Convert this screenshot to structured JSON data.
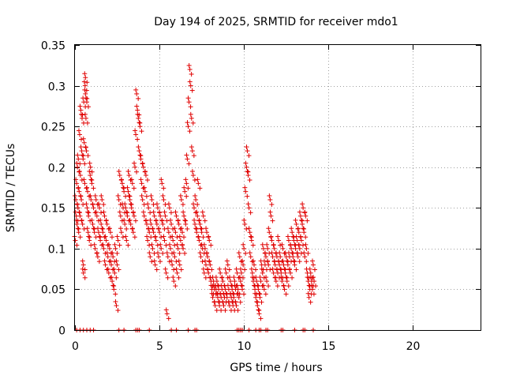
{
  "chart_data": {
    "type": "scatter",
    "title": "Day 194 of 2025, SRMTID for receiver mdo1",
    "xlabel": "GPS time / hours",
    "ylabel": "SRMTID / TECUs",
    "xlim": [
      0,
      24
    ],
    "ylim": [
      0,
      0.35
    ],
    "xticks": [
      0,
      5,
      10,
      15,
      20
    ],
    "xtick_labels": [
      "0",
      "5",
      "10",
      "15",
      "20"
    ],
    "yticks": [
      0,
      0.05,
      0.1,
      0.15,
      0.2,
      0.25,
      0.3,
      0.35
    ],
    "ytick_labels": [
      "0",
      "0.05",
      "0.1",
      "0.15",
      "0.2",
      "0.25",
      "0.3",
      "0.35"
    ],
    "grid": true,
    "marker": "+",
    "color": "#e00000",
    "series": [
      {
        "name": "SRMTID",
        "points": [
          [
            0.02,
            0.11
          ],
          [
            0.05,
            0.16
          ],
          [
            0.08,
            0.14
          ],
          [
            0.1,
            0.18
          ],
          [
            0.12,
            0.13
          ],
          [
            0.15,
            0.2
          ],
          [
            0.18,
            0.15
          ],
          [
            0.2,
            0.21
          ],
          [
            0.22,
            0.12
          ],
          [
            0.25,
            0.17
          ],
          [
            0.28,
            0.24
          ],
          [
            0.3,
            0.14
          ],
          [
            0.32,
            0.19
          ],
          [
            0.35,
            0.27
          ],
          [
            0.38,
            0.16
          ],
          [
            0.4,
            0.22
          ],
          [
            0.42,
            0.26
          ],
          [
            0.45,
            0.13
          ],
          [
            0.48,
            0.21
          ],
          [
            0.5,
            0.08
          ],
          [
            0.5,
            0.07
          ],
          [
            0.52,
            0.28
          ],
          [
            0.55,
            0.23
          ],
          [
            0.58,
            0.18
          ],
          [
            0.6,
            0.3
          ],
          [
            0.62,
            0.29
          ],
          [
            0.62,
            0.31
          ],
          [
            0.65,
            0.26
          ],
          [
            0.68,
            0.22
          ],
          [
            0.7,
            0.28
          ],
          [
            0.72,
            0.15
          ],
          [
            0.75,
            0.17
          ],
          [
            0.78,
            0.12
          ],
          [
            0.8,
            0.14
          ],
          [
            0.85,
            0.11
          ],
          [
            0.9,
            0.19
          ],
          [
            0.92,
            0.2
          ],
          [
            0.95,
            0.16
          ],
          [
            1.0,
            0.18
          ],
          [
            1.05,
            0.13
          ],
          [
            1.1,
            0.15
          ],
          [
            1.15,
            0.12
          ],
          [
            1.2,
            0.1
          ],
          [
            1.25,
            0.16
          ],
          [
            1.3,
            0.14
          ],
          [
            1.35,
            0.09
          ],
          [
            1.4,
            0.12
          ],
          [
            1.45,
            0.15
          ],
          [
            1.5,
            0.11
          ],
          [
            1.55,
            0.13
          ],
          [
            1.6,
            0.16
          ],
          [
            1.65,
            0.12
          ],
          [
            1.7,
            0.1
          ],
          [
            1.75,
            0.14
          ],
          [
            1.8,
            0.08
          ],
          [
            1.85,
            0.11
          ],
          [
            1.9,
            0.13
          ],
          [
            1.95,
            0.09
          ],
          [
            2.0,
            0.07
          ],
          [
            2.05,
            0.1
          ],
          [
            2.1,
            0.12
          ],
          [
            2.15,
            0.08
          ],
          [
            2.2,
            0.06
          ],
          [
            2.25,
            0.09
          ],
          [
            2.3,
            0.05
          ],
          [
            2.35,
            0.07
          ],
          [
            2.4,
            0.1
          ],
          [
            2.45,
            0.03
          ],
          [
            2.5,
            0.08
          ],
          [
            2.55,
            0.11
          ],
          [
            2.6,
            0.16
          ],
          [
            2.65,
            0.19
          ],
          [
            2.7,
            0.14
          ],
          [
            2.75,
            0.12
          ],
          [
            2.8,
            0.18
          ],
          [
            2.85,
            0.15
          ],
          [
            2.9,
            0.17
          ],
          [
            2.95,
            0.13
          ],
          [
            3.0,
            0.15
          ],
          [
            3.05,
            0.11
          ],
          [
            3.1,
            0.14
          ],
          [
            3.15,
            0.17
          ],
          [
            3.2,
            0.19
          ],
          [
            3.25,
            0.16
          ],
          [
            3.3,
            0.13
          ],
          [
            3.35,
            0.15
          ],
          [
            3.4,
            0.18
          ],
          [
            3.45,
            0.12
          ],
          [
            3.5,
            0.14
          ],
          [
            3.55,
            0.2
          ],
          [
            3.6,
            0.24
          ],
          [
            3.65,
            0.29
          ],
          [
            3.7,
            0.27
          ],
          [
            3.75,
            0.26
          ],
          [
            3.8,
            0.22
          ],
          [
            3.85,
            0.25
          ],
          [
            3.9,
            0.21
          ],
          [
            3.95,
            0.18
          ],
          [
            4.0,
            0.16
          ],
          [
            4.05,
            0.2
          ],
          [
            4.1,
            0.14
          ],
          [
            4.15,
            0.17
          ],
          [
            4.2,
            0.19
          ],
          [
            4.25,
            0.13
          ],
          [
            4.3,
            0.11
          ],
          [
            4.35,
            0.15
          ],
          [
            4.4,
            0.12
          ],
          [
            4.45,
            0.09
          ],
          [
            4.5,
            0.13
          ],
          [
            4.55,
            0.16
          ],
          [
            4.6,
            0.1
          ],
          [
            4.65,
            0.12
          ],
          [
            4.7,
            0.14
          ],
          [
            4.75,
            0.08
          ],
          [
            4.8,
            0.11
          ],
          [
            4.85,
            0.13
          ],
          [
            4.9,
            0.15
          ],
          [
            4.95,
            0.09
          ],
          [
            5.0,
            0.12
          ],
          [
            5.05,
            0.14
          ],
          [
            5.1,
            0.1
          ],
          [
            5.15,
            0.18
          ],
          [
            5.2,
            0.13
          ],
          [
            5.25,
            0.16
          ],
          [
            5.3,
            0.11
          ],
          [
            5.35,
            0.14
          ],
          [
            5.4,
            0.07
          ],
          [
            5.45,
            0.02
          ],
          [
            5.5,
            0.09
          ],
          [
            5.55,
            0.12
          ],
          [
            5.6,
            0.15
          ],
          [
            5.65,
            0.1
          ],
          [
            5.7,
            0.13
          ],
          [
            5.75,
            0.08
          ],
          [
            5.8,
            0.11
          ],
          [
            5.85,
            0.06
          ],
          [
            5.9,
            0.09
          ],
          [
            5.95,
            0.12
          ],
          [
            6.0,
            0.14
          ],
          [
            6.05,
            0.07
          ],
          [
            6.1,
            0.1
          ],
          [
            6.15,
            0.13
          ],
          [
            6.2,
            0.08
          ],
          [
            6.25,
            0.11
          ],
          [
            6.3,
            0.16
          ],
          [
            6.35,
            0.12
          ],
          [
            6.4,
            0.1
          ],
          [
            6.45,
            0.14
          ],
          [
            6.5,
            0.17
          ],
          [
            6.55,
            0.13
          ],
          [
            6.6,
            0.18
          ],
          [
            6.65,
            0.21
          ],
          [
            6.7,
            0.25
          ],
          [
            6.75,
            0.28
          ],
          [
            6.8,
            0.32
          ],
          [
            6.85,
            0.3
          ],
          [
            6.9,
            0.26
          ],
          [
            6.95,
            0.22
          ],
          [
            7.0,
            0.19
          ],
          [
            7.05,
            0.15
          ],
          [
            7.1,
            0.13
          ],
          [
            7.15,
            0.16
          ],
          [
            7.2,
            0.12
          ],
          [
            7.25,
            0.14
          ],
          [
            7.3,
            0.18
          ],
          [
            7.35,
            0.11
          ],
          [
            7.4,
            0.13
          ],
          [
            7.45,
            0.09
          ],
          [
            7.5,
            0.12
          ],
          [
            7.55,
            0.1
          ],
          [
            7.6,
            0.14
          ],
          [
            7.65,
            0.07
          ],
          [
            7.7,
            0.1
          ],
          [
            7.75,
            0.08
          ],
          [
            7.8,
            0.12
          ],
          [
            7.85,
            0.09
          ],
          [
            7.9,
            0.07
          ],
          [
            7.95,
            0.11
          ],
          [
            8.0,
            0.08
          ],
          [
            8.05,
            0.06
          ],
          [
            8.1,
            0.05
          ],
          [
            8.15,
            0.04
          ],
          [
            8.2,
            0.06
          ],
          [
            8.25,
            0.05
          ],
          [
            8.3,
            0.03
          ],
          [
            8.35,
            0.05
          ],
          [
            8.4,
            0.06
          ],
          [
            8.45,
            0.04
          ],
          [
            8.5,
            0.05
          ],
          [
            8.55,
            0.03
          ],
          [
            8.6,
            0.07
          ],
          [
            8.65,
            0.04
          ],
          [
            8.7,
            0.05
          ],
          [
            8.75,
            0.06
          ],
          [
            8.8,
            0.03
          ],
          [
            8.85,
            0.04
          ],
          [
            8.9,
            0.05
          ],
          [
            8.95,
            0.07
          ],
          [
            9.0,
            0.04
          ],
          [
            9.05,
            0.08
          ],
          [
            9.1,
            0.05
          ],
          [
            9.15,
            0.03
          ],
          [
            9.2,
            0.06
          ],
          [
            9.25,
            0.04
          ],
          [
            9.3,
            0.05
          ],
          [
            9.35,
            0.03
          ],
          [
            9.4,
            0.04
          ],
          [
            9.45,
            0.06
          ],
          [
            9.5,
            0.05
          ],
          [
            9.55,
            0.03
          ],
          [
            9.6,
            0.07
          ],
          [
            9.65,
            0.05
          ],
          [
            9.7,
            0.04
          ],
          [
            9.75,
            0.09
          ],
          [
            9.8,
            0.06
          ],
          [
            9.85,
            0.07
          ],
          [
            9.9,
            0.05
          ],
          [
            9.95,
            0.08
          ],
          [
            10.0,
            0.1
          ],
          [
            10.05,
            0.13
          ],
          [
            10.1,
            0.17
          ],
          [
            10.15,
            0.2
          ],
          [
            10.2,
            0.22
          ],
          [
            10.25,
            0.19
          ],
          [
            10.3,
            0.15
          ],
          [
            10.35,
            0.12
          ],
          [
            10.4,
            0.09
          ],
          [
            10.45,
            0.11
          ],
          [
            10.5,
            0.07
          ],
          [
            10.55,
            0.06
          ],
          [
            10.6,
            0.08
          ],
          [
            10.65,
            0.05
          ],
          [
            10.7,
            0.04
          ],
          [
            10.75,
            0.06
          ],
          [
            10.8,
            0.03
          ],
          [
            10.85,
            0.05
          ],
          [
            10.9,
            0.02
          ],
          [
            10.95,
            0.04
          ],
          [
            11.0,
            0.06
          ],
          [
            11.05,
            0.08
          ],
          [
            11.1,
            0.07
          ],
          [
            11.15,
            0.1
          ],
          [
            11.2,
            0.05
          ],
          [
            11.25,
            0.08
          ],
          [
            11.3,
            0.09
          ],
          [
            11.35,
            0.06
          ],
          [
            11.4,
            0.1
          ],
          [
            11.45,
            0.08
          ],
          [
            11.5,
            0.12
          ],
          [
            11.55,
            0.16
          ],
          [
            11.6,
            0.14
          ],
          [
            11.65,
            0.11
          ],
          [
            11.7,
            0.09
          ],
          [
            11.75,
            0.07
          ],
          [
            11.8,
            0.1
          ],
          [
            11.85,
            0.08
          ],
          [
            11.9,
            0.06
          ],
          [
            11.95,
            0.09
          ],
          [
            12.0,
            0.07
          ],
          [
            12.05,
            0.11
          ],
          [
            12.1,
            0.08
          ],
          [
            12.15,
            0.09
          ],
          [
            12.2,
            0.07
          ],
          [
            12.25,
            0.06
          ],
          [
            12.3,
            0.1
          ],
          [
            12.35,
            0.08
          ],
          [
            12.4,
            0.05
          ],
          [
            12.45,
            0.07
          ],
          [
            12.5,
            0.09
          ],
          [
            12.55,
            0.06
          ],
          [
            12.6,
            0.08
          ],
          [
            12.65,
            0.11
          ],
          [
            12.7,
            0.09
          ],
          [
            12.75,
            0.07
          ],
          [
            12.8,
            0.1
          ],
          [
            12.85,
            0.12
          ],
          [
            12.9,
            0.09
          ],
          [
            12.95,
            0.11
          ],
          [
            13.0,
            0.08
          ],
          [
            13.05,
            0.1
          ],
          [
            13.1,
            0.13
          ],
          [
            13.15,
            0.11
          ],
          [
            13.2,
            0.09
          ],
          [
            13.25,
            0.12
          ],
          [
            13.3,
            0.1
          ],
          [
            13.35,
            0.14
          ],
          [
            13.4,
            0.11
          ],
          [
            13.45,
            0.13
          ],
          [
            13.5,
            0.15
          ],
          [
            13.55,
            0.12
          ],
          [
            13.6,
            0.09
          ],
          [
            13.65,
            0.14
          ],
          [
            13.7,
            0.1
          ],
          [
            13.75,
            0.07
          ],
          [
            13.8,
            0.06
          ],
          [
            13.85,
            0.04
          ],
          [
            13.9,
            0.05
          ],
          [
            13.95,
            0.07
          ],
          [
            14.0,
            0.06
          ],
          [
            14.05,
            0.05
          ],
          [
            14.1,
            0.08
          ],
          [
            14.15,
            0.06
          ]
        ]
      }
    ],
    "zero_points_x": [
      0.1,
      0.3,
      0.5,
      0.7,
      0.9,
      1.1,
      2.6,
      2.9,
      3.6,
      3.7,
      3.8,
      4.4,
      5.7,
      6.0,
      6.7,
      7.1,
      7.2,
      9.6,
      9.7,
      9.8,
      9.9,
      10.3,
      10.7,
      10.9,
      11.0,
      11.3,
      11.4,
      12.2,
      12.3,
      13.0,
      13.5,
      13.6,
      14.1
    ]
  }
}
